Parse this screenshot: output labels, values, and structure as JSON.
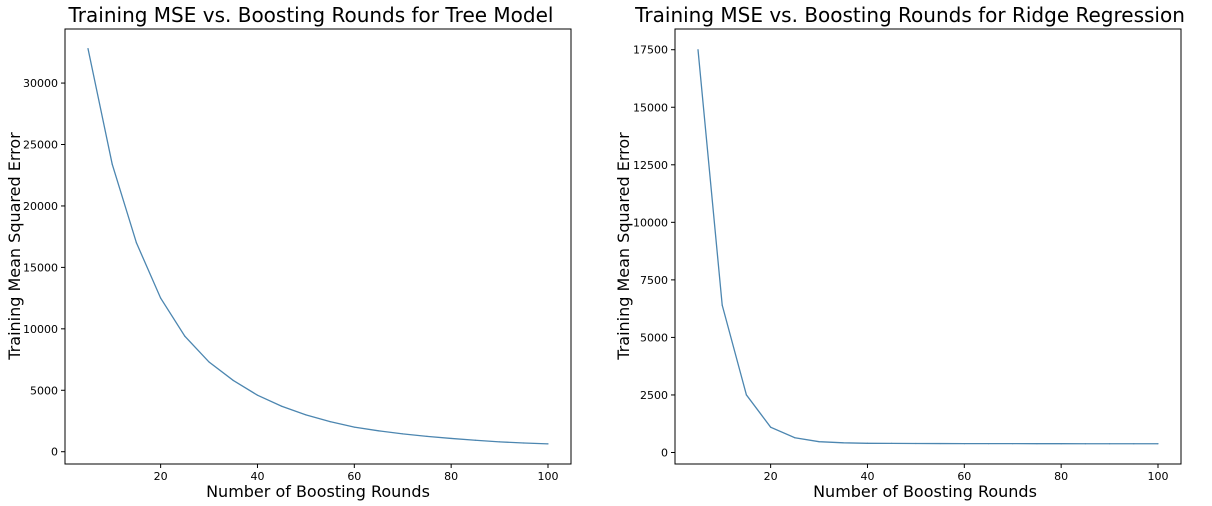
{
  "chart_data": [
    {
      "type": "line",
      "title": "Training MSE vs. Boosting Rounds for Tree Model",
      "xlabel": "Number of Boosting Rounds",
      "ylabel": "Training Mean Squared Error",
      "xlim": [
        0.25,
        104.75
      ],
      "ylim": [
        -1000,
        34400
      ],
      "xticks": [
        20,
        40,
        60,
        80,
        100
      ],
      "yticks": [
        0,
        5000,
        10000,
        15000,
        20000,
        25000,
        30000
      ],
      "grid": false,
      "line_color": "#4c86b0",
      "x": [
        5,
        10,
        15,
        20,
        25,
        30,
        35,
        40,
        45,
        50,
        55,
        60,
        65,
        70,
        75,
        80,
        85,
        90,
        95,
        100
      ],
      "series": [
        {
          "values": [
            32800,
            23400,
            17000,
            12500,
            9400,
            7300,
            5800,
            4600,
            3700,
            3000,
            2450,
            2000,
            1700,
            1450,
            1250,
            1080,
            930,
            800,
            710,
            640
          ]
        }
      ]
    },
    {
      "type": "line",
      "title": "Training MSE vs. Boosting Rounds for Ridge Regression",
      "xlabel": "Number of Boosting Rounds",
      "ylabel": "Training Mean Squared Error",
      "xlim": [
        0.25,
        104.75
      ],
      "ylim": [
        -500,
        18400
      ],
      "xticks": [
        20,
        40,
        60,
        80,
        100
      ],
      "yticks": [
        0,
        2500,
        5000,
        7500,
        10000,
        12500,
        15000,
        17500
      ],
      "grid": false,
      "line_color": "#4c86b0",
      "x": [
        5,
        10,
        15,
        20,
        25,
        30,
        35,
        40,
        45,
        50,
        55,
        60,
        65,
        70,
        75,
        80,
        85,
        90,
        95,
        100
      ],
      "series": [
        {
          "values": [
            17500,
            6400,
            2500,
            1100,
            640,
            470,
            420,
            400,
            395,
            390,
            388,
            386,
            385,
            384,
            383,
            382,
            381,
            380,
            380,
            380
          ]
        }
      ]
    }
  ]
}
